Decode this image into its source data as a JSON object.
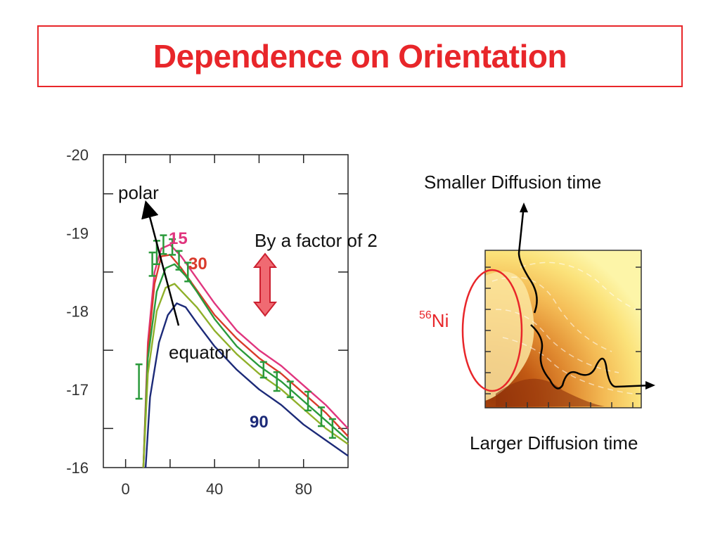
{
  "title": "Dependence on Orientation",
  "chart_data": {
    "type": "line",
    "y_ticks": [
      "-20",
      "-19",
      "-18",
      "-17",
      "-16"
    ],
    "x_ticks": [
      "0",
      "40",
      "80"
    ],
    "xlim": [
      -10,
      100
    ],
    "ylim": [
      -16,
      -20
    ],
    "series": [
      {
        "name": "15",
        "color": "#e0357e",
        "x": [
          8,
          10,
          13,
          16,
          20,
          25,
          30,
          40,
          50,
          60,
          70,
          80,
          90,
          100
        ],
        "y": [
          -16,
          -17.6,
          -18.5,
          -18.8,
          -18.85,
          -18.7,
          -18.5,
          -18.1,
          -17.75,
          -17.5,
          -17.3,
          -17.05,
          -16.8,
          -16.5
        ]
      },
      {
        "name": "30",
        "color": "#d93a2b",
        "x": [
          8,
          10,
          13,
          16,
          20,
          25,
          30,
          40,
          50,
          60,
          70,
          80,
          90,
          100
        ],
        "y": [
          -16,
          -17.5,
          -18.35,
          -18.7,
          -18.72,
          -18.55,
          -18.35,
          -17.95,
          -17.65,
          -17.4,
          -17.2,
          -16.95,
          -16.7,
          -16.4
        ]
      },
      {
        "name": "",
        "color": "#2a9a3b",
        "x": [
          8,
          10,
          14,
          18,
          22,
          27,
          32,
          40,
          50,
          60,
          70,
          80,
          90,
          100
        ],
        "y": [
          -16,
          -17.4,
          -18.25,
          -18.55,
          -18.6,
          -18.45,
          -18.25,
          -17.9,
          -17.55,
          -17.3,
          -17.1,
          -16.85,
          -16.6,
          -16.35
        ]
      },
      {
        "name": "",
        "color": "#8fb02a",
        "x": [
          8,
          10,
          14,
          18,
          22,
          27,
          32,
          40,
          50,
          60,
          70,
          80,
          90,
          100
        ],
        "y": [
          -16,
          -17.2,
          -18.0,
          -18.3,
          -18.35,
          -18.2,
          -18.05,
          -17.75,
          -17.45,
          -17.2,
          -17.0,
          -16.75,
          -16.5,
          -16.3
        ]
      },
      {
        "name": "90",
        "color": "#1c2a78",
        "x": [
          9,
          11,
          15,
          19,
          23,
          27,
          32,
          40,
          50,
          60,
          70,
          80,
          90,
          100
        ],
        "y": [
          -16,
          -16.9,
          -17.6,
          -17.95,
          -18.1,
          -18.05,
          -17.85,
          -17.55,
          -17.25,
          -17.0,
          -16.8,
          -16.55,
          -16.35,
          -16.15
        ]
      }
    ],
    "error_points": [
      {
        "x": 6,
        "y": -17.1,
        "err": 0.22
      },
      {
        "x": 12,
        "y": -18.6,
        "err": 0.15
      },
      {
        "x": 14,
        "y": -18.75,
        "err": 0.15
      },
      {
        "x": 17,
        "y": -18.85,
        "err": 0.12
      },
      {
        "x": 21,
        "y": -18.82,
        "err": 0.1
      },
      {
        "x": 24,
        "y": -18.65,
        "err": 0.12
      },
      {
        "x": 28,
        "y": -18.5,
        "err": 0.12
      },
      {
        "x": 62,
        "y": -17.25,
        "err": 0.1
      },
      {
        "x": 68,
        "y": -17.1,
        "err": 0.12
      },
      {
        "x": 74,
        "y": -17.0,
        "err": 0.1
      },
      {
        "x": 82,
        "y": -16.85,
        "err": 0.12
      },
      {
        "x": 88,
        "y": -16.65,
        "err": 0.12
      },
      {
        "x": 93,
        "y": -16.5,
        "err": 0.12
      }
    ]
  },
  "annotations": {
    "polar": "polar",
    "equator": "equator",
    "factor": "By a factor of 2",
    "smaller": "Smaller Diffusion time",
    "larger": "Larger Diffusion time",
    "ni_sup": "56",
    "ni": "Ni"
  },
  "colors": {
    "title": "#e8262a",
    "arrow_fill": "#f06a72",
    "arrow_stroke": "#cc2030",
    "ellipse": "#e8262a"
  }
}
